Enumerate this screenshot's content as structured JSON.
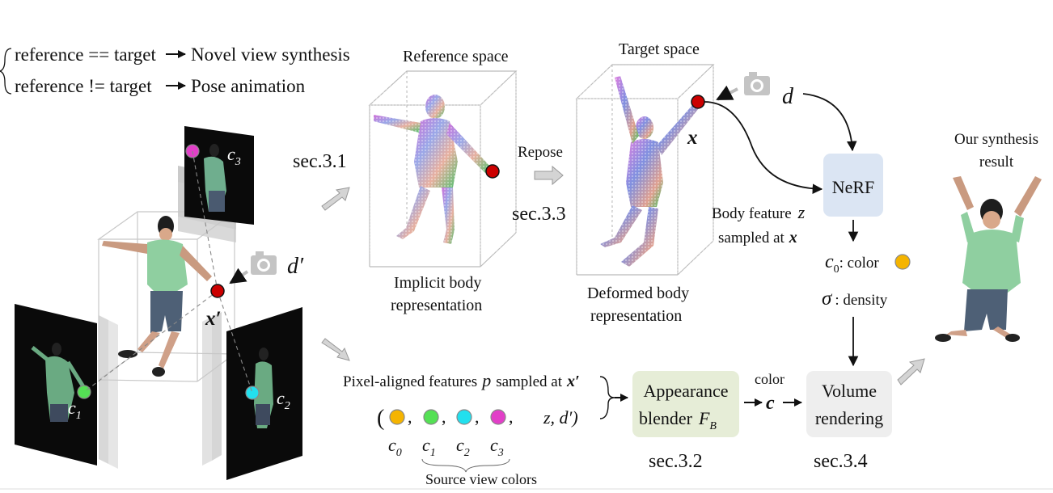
{
  "rules": {
    "line1": {
      "condition": "reference == target",
      "result": "Novel view synthesis"
    },
    "line2": {
      "condition": "reference != target",
      "result": "Pose animation"
    }
  },
  "source_views": {
    "c1": {
      "base": "c",
      "sub": "1"
    },
    "c2": {
      "base": "c",
      "sub": "2"
    },
    "c3": {
      "base": "c",
      "sub": "3"
    }
  },
  "point_label": "x′",
  "input_direction": "d′",
  "sections": {
    "s1": "sec.3.1",
    "s2": "sec.3.2",
    "s3": "sec.3.3",
    "s4": "sec.3.4"
  },
  "reference_space": {
    "title": "Reference space",
    "caption_line1": "Implicit body",
    "caption_line2": "representation"
  },
  "repose_label": "Repose",
  "target_space": {
    "title": "Target space",
    "caption_line1": "Deformed body",
    "caption_line2": "representation",
    "point": "x"
  },
  "direction_d": "d",
  "nerf": {
    "label": "NeRF",
    "feature_line1_text": "Body feature",
    "feature_line1_var": "z",
    "feature_line2_text": "sampled at",
    "feature_line2_var": "x",
    "color_out_var": "c",
    "color_out_sub": "0",
    "color_out_text": ": color",
    "density_var": "σ",
    "density_text": ": density"
  },
  "pixel_features": {
    "line_pre": "Pixel-aligned features",
    "line_var": "p",
    "line_mid": "sampled at",
    "line_point": "x′",
    "tuple_tail": "z, d′)",
    "labels": [
      {
        "base": "c",
        "sub": "0"
      },
      {
        "base": "c",
        "sub": "1"
      },
      {
        "base": "c",
        "sub": "2"
      },
      {
        "base": "c",
        "sub": "3"
      }
    ],
    "brace_caption": "Source view colors"
  },
  "blender": {
    "line1": "Appearance",
    "line2": "blender",
    "var": "F",
    "sub": "B"
  },
  "color_arrow": {
    "label": "color",
    "var": "c"
  },
  "volume": {
    "line1": "Volume",
    "line2": "rendering"
  },
  "result": {
    "line1": "Our synthesis",
    "line2": "result"
  },
  "colors": {
    "point_red": "#cc0000",
    "c0_orange": "#f5b400",
    "c1_green": "#55e055",
    "c2_cyan": "#22e0ee",
    "c3_magenta": "#e23fc8",
    "nerf_box": "#dbe5f3",
    "blender_box": "#e6edd7",
    "volume_box": "#eeeeee",
    "gray_arrow": "#bbbbbb"
  }
}
